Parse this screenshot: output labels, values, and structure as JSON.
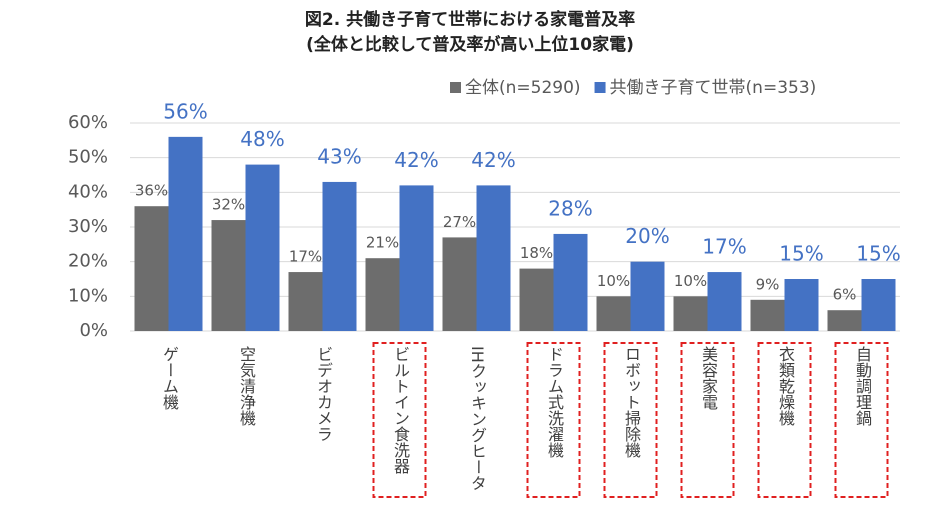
{
  "chart_data": {
    "type": "bar",
    "title": "図2. 共働き子育て世帯における家電普及率",
    "subtitle": "(全体と比較して普及率が高い上位10家電)",
    "categories": [
      "ゲーム機",
      "空気清浄機",
      "ビデオカメラ",
      "ビルトイン食洗器",
      "IHクッキングヒータ",
      "ドラム式洗濯機",
      "ロボット掃除機",
      "美容家電",
      "衣類乾燥機",
      "自動調理鍋"
    ],
    "series": [
      {
        "name": "全体(n=5290)",
        "color": "#6d6d6d",
        "values": [
          36,
          32,
          17,
          21,
          27,
          18,
          10,
          10,
          9,
          6
        ],
        "value_labels": [
          "36%",
          "32%",
          "17%",
          "21%",
          "27%",
          "18%",
          "10%",
          "10%",
          "9%",
          "6%"
        ]
      },
      {
        "name": "共働き子育て世帯(n=353)",
        "color": "#4472c4",
        "values": [
          56,
          48,
          43,
          42,
          42,
          28,
          20,
          17,
          15,
          15
        ],
        "value_labels": [
          "56%",
          "48%",
          "43%",
          "42%",
          "42%",
          "28%",
          "20%",
          "17%",
          "15%",
          "15%"
        ]
      }
    ],
    "ylim": [
      0,
      60
    ],
    "yticks": [
      {
        "value": 0,
        "label": "0%"
      },
      {
        "value": 10,
        "label": "10%"
      },
      {
        "value": 20,
        "label": "20%"
      },
      {
        "value": 30,
        "label": "30%"
      },
      {
        "value": 40,
        "label": "40%"
      },
      {
        "value": 50,
        "label": "50%"
      },
      {
        "value": 60,
        "label": "60%"
      }
    ],
    "grid": true,
    "legend": "top-right",
    "highlighted": [
      false,
      false,
      false,
      true,
      false,
      true,
      true,
      true,
      true,
      true
    ],
    "highlight_color": "#e02020"
  }
}
